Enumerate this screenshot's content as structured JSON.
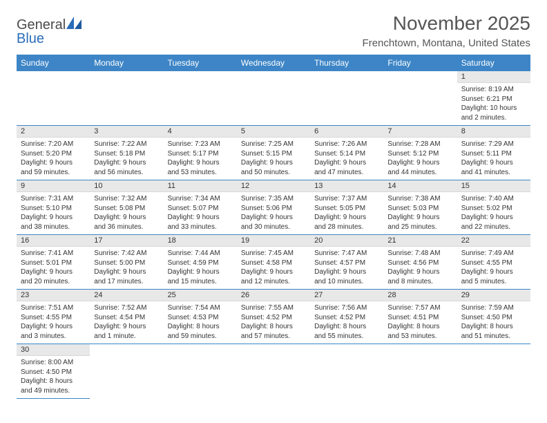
{
  "logo": {
    "text_general": "General",
    "text_blue": "Blue"
  },
  "title": {
    "month": "November 2025",
    "location": "Frenchtown, Montana, United States"
  },
  "weekdays": [
    "Sunday",
    "Monday",
    "Tuesday",
    "Wednesday",
    "Thursday",
    "Friday",
    "Saturday"
  ],
  "colors": {
    "header_bg": "#3d85c6",
    "header_text": "#ffffff",
    "daynum_bg": "#e8e8e8",
    "border": "#3d85c6",
    "body_text": "#333333",
    "logo_gray": "#4a4a4a",
    "logo_blue": "#2a6db8"
  },
  "typography": {
    "title_month_fontsize": 28,
    "title_location_fontsize": 15,
    "weekday_fontsize": 12,
    "daynum_fontsize": 11,
    "dayinfo_fontsize": 10
  },
  "layout": {
    "cols": 7,
    "rows": 6,
    "first_day_col": 6
  },
  "days": {
    "1": {
      "sunrise": "8:19 AM",
      "sunset": "6:21 PM",
      "daylight": "10 hours and 2 minutes."
    },
    "2": {
      "sunrise": "7:20 AM",
      "sunset": "5:20 PM",
      "daylight": "9 hours and 59 minutes."
    },
    "3": {
      "sunrise": "7:22 AM",
      "sunset": "5:18 PM",
      "daylight": "9 hours and 56 minutes."
    },
    "4": {
      "sunrise": "7:23 AM",
      "sunset": "5:17 PM",
      "daylight": "9 hours and 53 minutes."
    },
    "5": {
      "sunrise": "7:25 AM",
      "sunset": "5:15 PM",
      "daylight": "9 hours and 50 minutes."
    },
    "6": {
      "sunrise": "7:26 AM",
      "sunset": "5:14 PM",
      "daylight": "9 hours and 47 minutes."
    },
    "7": {
      "sunrise": "7:28 AM",
      "sunset": "5:12 PM",
      "daylight": "9 hours and 44 minutes."
    },
    "8": {
      "sunrise": "7:29 AM",
      "sunset": "5:11 PM",
      "daylight": "9 hours and 41 minutes."
    },
    "9": {
      "sunrise": "7:31 AM",
      "sunset": "5:10 PM",
      "daylight": "9 hours and 38 minutes."
    },
    "10": {
      "sunrise": "7:32 AM",
      "sunset": "5:08 PM",
      "daylight": "9 hours and 36 minutes."
    },
    "11": {
      "sunrise": "7:34 AM",
      "sunset": "5:07 PM",
      "daylight": "9 hours and 33 minutes."
    },
    "12": {
      "sunrise": "7:35 AM",
      "sunset": "5:06 PM",
      "daylight": "9 hours and 30 minutes."
    },
    "13": {
      "sunrise": "7:37 AM",
      "sunset": "5:05 PM",
      "daylight": "9 hours and 28 minutes."
    },
    "14": {
      "sunrise": "7:38 AM",
      "sunset": "5:03 PM",
      "daylight": "9 hours and 25 minutes."
    },
    "15": {
      "sunrise": "7:40 AM",
      "sunset": "5:02 PM",
      "daylight": "9 hours and 22 minutes."
    },
    "16": {
      "sunrise": "7:41 AM",
      "sunset": "5:01 PM",
      "daylight": "9 hours and 20 minutes."
    },
    "17": {
      "sunrise": "7:42 AM",
      "sunset": "5:00 PM",
      "daylight": "9 hours and 17 minutes."
    },
    "18": {
      "sunrise": "7:44 AM",
      "sunset": "4:59 PM",
      "daylight": "9 hours and 15 minutes."
    },
    "19": {
      "sunrise": "7:45 AM",
      "sunset": "4:58 PM",
      "daylight": "9 hours and 12 minutes."
    },
    "20": {
      "sunrise": "7:47 AM",
      "sunset": "4:57 PM",
      "daylight": "9 hours and 10 minutes."
    },
    "21": {
      "sunrise": "7:48 AM",
      "sunset": "4:56 PM",
      "daylight": "9 hours and 8 minutes."
    },
    "22": {
      "sunrise": "7:49 AM",
      "sunset": "4:55 PM",
      "daylight": "9 hours and 5 minutes."
    },
    "23": {
      "sunrise": "7:51 AM",
      "sunset": "4:55 PM",
      "daylight": "9 hours and 3 minutes."
    },
    "24": {
      "sunrise": "7:52 AM",
      "sunset": "4:54 PM",
      "daylight": "9 hours and 1 minute."
    },
    "25": {
      "sunrise": "7:54 AM",
      "sunset": "4:53 PM",
      "daylight": "8 hours and 59 minutes."
    },
    "26": {
      "sunrise": "7:55 AM",
      "sunset": "4:52 PM",
      "daylight": "8 hours and 57 minutes."
    },
    "27": {
      "sunrise": "7:56 AM",
      "sunset": "4:52 PM",
      "daylight": "8 hours and 55 minutes."
    },
    "28": {
      "sunrise": "7:57 AM",
      "sunset": "4:51 PM",
      "daylight": "8 hours and 53 minutes."
    },
    "29": {
      "sunrise": "7:59 AM",
      "sunset": "4:50 PM",
      "daylight": "8 hours and 51 minutes."
    },
    "30": {
      "sunrise": "8:00 AM",
      "sunset": "4:50 PM",
      "daylight": "8 hours and 49 minutes."
    }
  },
  "labels": {
    "sunrise": "Sunrise: ",
    "sunset": "Sunset: ",
    "daylight": "Daylight: "
  }
}
